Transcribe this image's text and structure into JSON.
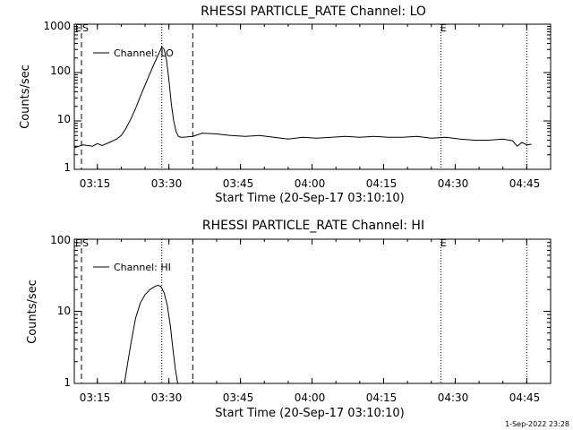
{
  "footer": {
    "timestamp": "1-Sep-2022 23:28"
  },
  "chart_data": [
    {
      "type": "line",
      "title": "RHESSI PARTICLE_RATE Channel: LO",
      "xlabel": "Start Time (20-Sep-17 03:10:10)",
      "ylabel": "Counts/sec",
      "yscale": "log",
      "ylim": [
        1,
        1000
      ],
      "xlim": [
        "03:10:10",
        "04:50:00"
      ],
      "x_ticks": [
        "03:15",
        "03:30",
        "03:45",
        "04:00",
        "04:15",
        "04:30",
        "04:45"
      ],
      "y_ticks": [
        "1",
        "10",
        "100",
        "1000"
      ],
      "legend": {
        "position": "top-left",
        "entries": [
          "Channel: LO"
        ]
      },
      "markers": [
        {
          "label": "E",
          "x": "03:11:40",
          "style": "dashed"
        },
        {
          "label": "S",
          "x": "03:11:40",
          "style": "dashed"
        },
        {
          "label": "",
          "x": "03:35:00",
          "style": "dashed"
        },
        {
          "label": "",
          "x": "03:28:30",
          "style": "dotted"
        },
        {
          "label": "E",
          "x": "04:27:00",
          "style": "dotted"
        },
        {
          "label": "",
          "x": "04:45:00",
          "style": "dotted"
        }
      ],
      "series": [
        {
          "name": "Channel: LO",
          "x": [
            "03:10:10",
            "03:12:00",
            "03:14:00",
            "03:15:00",
            "03:16:00",
            "03:17:30",
            "03:19:00",
            "03:20:00",
            "03:21:00",
            "03:22:00",
            "03:23:00",
            "03:24:00",
            "03:25:00",
            "03:26:00",
            "03:27:00",
            "03:28:00",
            "03:28:30",
            "03:29:00",
            "03:29:30",
            "03:30:00",
            "03:30:30",
            "03:31:00",
            "03:31:30",
            "03:32:00",
            "03:32:30",
            "03:33:00",
            "03:35:00",
            "03:37:00",
            "03:40:00",
            "03:43:00",
            "03:46:00",
            "03:49:00",
            "03:52:00",
            "03:55:00",
            "03:58:00",
            "04:01:00",
            "04:04:00",
            "04:07:00",
            "04:10:00",
            "04:13:00",
            "04:16:00",
            "04:19:00",
            "04:22:00",
            "04:25:00",
            "04:28:00",
            "04:31:00",
            "04:34:00",
            "04:37:00",
            "04:40:00",
            "04:42:00",
            "04:43:00",
            "04:44:00",
            "04:45:00",
            "04:46:00"
          ],
          "y": [
            2.8,
            3.2,
            3.0,
            3.4,
            3.1,
            3.6,
            4.2,
            5.0,
            7.0,
            11,
            18,
            32,
            55,
            95,
            160,
            260,
            340,
            300,
            180,
            70,
            22,
            10,
            6,
            4.8,
            4.6,
            4.6,
            4.8,
            5.6,
            5.4,
            5.0,
            4.8,
            5.0,
            4.6,
            4.2,
            4.6,
            4.4,
            4.6,
            4.8,
            4.6,
            4.8,
            4.6,
            4.6,
            4.8,
            4.4,
            4.6,
            4.2,
            4.0,
            4.0,
            4.2,
            3.9,
            3.0,
            3.6,
            3.2,
            3.3
          ]
        }
      ]
    },
    {
      "type": "line",
      "title": "RHESSI PARTICLE_RATE Channel: HI",
      "xlabel": "Start Time (20-Sep-17 03:10:10)",
      "ylabel": "Counts/sec",
      "yscale": "log",
      "ylim": [
        1,
        100
      ],
      "xlim": [
        "03:10:10",
        "04:50:00"
      ],
      "x_ticks": [
        "03:15",
        "03:30",
        "03:45",
        "04:00",
        "04:15",
        "04:30",
        "04:45"
      ],
      "y_ticks": [
        "1",
        "10",
        "100"
      ],
      "legend": {
        "position": "top-left",
        "entries": [
          "Channel: HI"
        ]
      },
      "markers": [
        {
          "label": "E",
          "x": "03:11:40",
          "style": "dashed"
        },
        {
          "label": "S",
          "x": "03:11:40",
          "style": "dashed"
        },
        {
          "label": "",
          "x": "03:35:00",
          "style": "dashed"
        },
        {
          "label": "",
          "x": "03:28:30",
          "style": "dotted"
        },
        {
          "label": "E",
          "x": "04:27:00",
          "style": "dotted"
        },
        {
          "label": "",
          "x": "04:45:00",
          "style": "dotted"
        }
      ],
      "series": [
        {
          "name": "Channel: HI",
          "x": [
            "03:20:40",
            "03:21:10",
            "03:22:00",
            "03:23:00",
            "03:24:00",
            "03:25:00",
            "03:26:00",
            "03:27:00",
            "03:27:40",
            "03:28:20",
            "03:29:00",
            "03:29:40",
            "03:30:20",
            "03:30:50",
            "03:31:20",
            "03:31:50"
          ],
          "y": [
            1.0,
            1.6,
            3.5,
            8.0,
            13,
            17,
            20,
            22,
            23,
            22,
            18,
            12,
            6,
            3,
            1.6,
            1.0
          ]
        }
      ]
    }
  ]
}
